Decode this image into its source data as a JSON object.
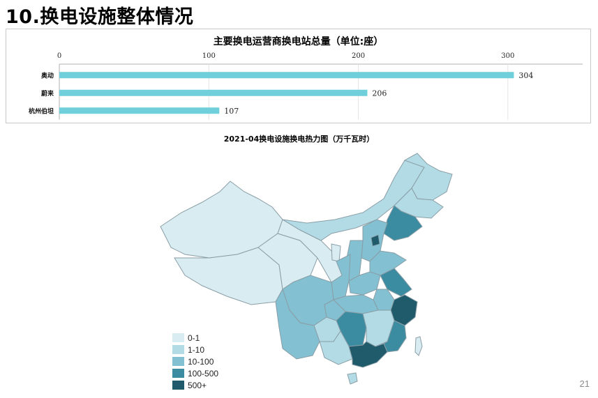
{
  "slide": {
    "title": "10.换电设施整体情况",
    "page_number": "21"
  },
  "chart_data": [
    {
      "type": "bar",
      "orientation": "horizontal",
      "title": "主要换电运营商换电站总量（单位:座）",
      "categories": [
        "奥动",
        "蔚来",
        "杭州伯坦"
      ],
      "values": [
        304,
        206,
        107
      ],
      "xlim": [
        0,
        350
      ],
      "xticks": [
        0,
        100,
        200,
        300
      ],
      "grid": true,
      "bar_color": "#6fcfda"
    },
    {
      "type": "heatmap",
      "title": "2021-04换电设施换电热力图（万千瓦时）",
      "legend": [
        {
          "label": "0-1",
          "color": "#d9ecf2"
        },
        {
          "label": "1-10",
          "color": "#b3dbe6"
        },
        {
          "label": "10-100",
          "color": "#82c0d2"
        },
        {
          "label": "100-500",
          "color": "#3b8ba1"
        },
        {
          "label": "500+",
          "color": "#1f5b6b"
        }
      ]
    }
  ]
}
